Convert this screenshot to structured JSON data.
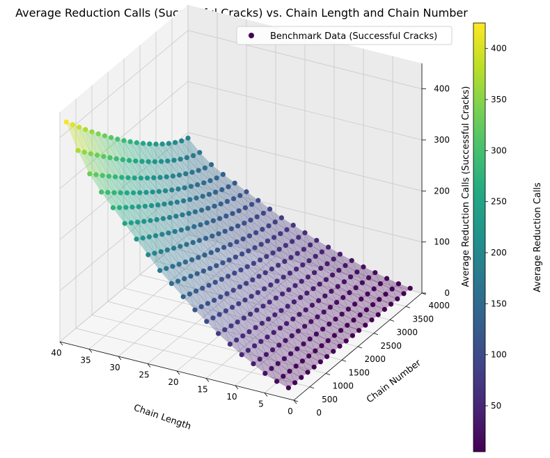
{
  "chart_data": {
    "type": "scatter",
    "title": "Average Reduction Calls (Successful Cracks) vs. Chain Length and Chain Number",
    "xlabel": "Chain Length",
    "ylabel": "Chain Number",
    "zlabel": "Average Reduction Calls (Successful Cracks)",
    "xlim": [
      0,
      40
    ],
    "ylim": [
      0,
      4000
    ],
    "zlim": [
      0,
      450
    ],
    "x_ticks": [
      "0",
      "5",
      "10",
      "15",
      "20",
      "25",
      "30",
      "35",
      "40"
    ],
    "y_ticks": [
      "0",
      "500",
      "1000",
      "1500",
      "2000",
      "2500",
      "3000",
      "3500",
      "4000"
    ],
    "z_ticks": [
      "0",
      "100",
      "200",
      "300",
      "400"
    ],
    "legend": {
      "label": "Benchmark Data (Successful Cracks)",
      "placement": "top-right"
    },
    "colorbar": {
      "label": "Average Reduction Calls",
      "colormap": "viridis",
      "range": [
        5,
        425
      ],
      "ticks": [
        "50",
        "100",
        "150",
        "200",
        "250",
        "300",
        "350",
        "400"
      ]
    },
    "surface": "translucent triangulated surface through the data points",
    "chain_length_values": [
      2,
      4,
      6,
      8,
      10,
      12,
      14,
      16,
      18,
      20,
      22,
      24,
      26,
      28,
      30,
      32,
      34,
      36,
      38,
      40
    ],
    "chain_number_values": [
      200,
      400,
      600,
      800,
      1000,
      1200,
      1400,
      1600,
      1800,
      2000,
      2200,
      2400,
      2600,
      2800,
      3000,
      3200,
      3400,
      3600,
      3800,
      4000
    ],
    "peak_value_by_chain_length": [
      8,
      15,
      25,
      38,
      50,
      65,
      80,
      98,
      115,
      135,
      155,
      175,
      200,
      225,
      250,
      275,
      300,
      330,
      370,
      420
    ],
    "trend": "value rises with chain length and rises toward smaller chain numbers, reaching about 420 at chain length 40 and chain number 200"
  },
  "colors": {
    "cmap_stops": [
      "#440154",
      "#482475",
      "#414487",
      "#355f8d",
      "#2a788e",
      "#21918c",
      "#22a884",
      "#44bf70",
      "#7ad151",
      "#bddf26",
      "#fde725"
    ],
    "pane": "#f2f2f2",
    "grid": "#c8c8c8"
  }
}
